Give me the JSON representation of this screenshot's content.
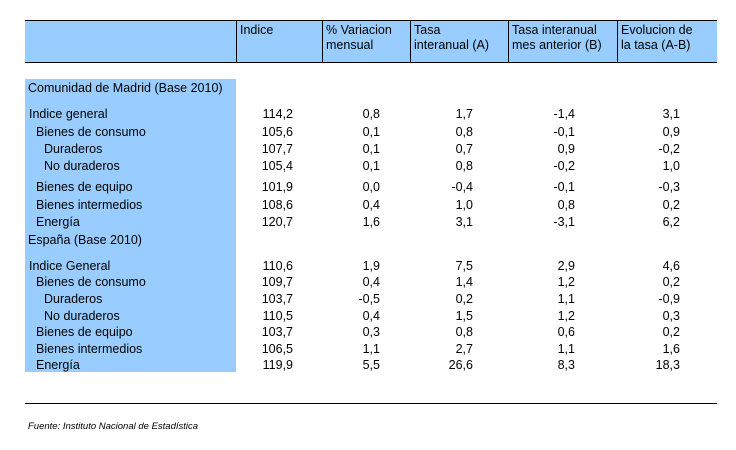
{
  "header": {
    "columns": [
      [
        "Indice"
      ],
      [
        "% Variacion",
        "mensual"
      ],
      [
        "Tasa",
        "interanual (A)"
      ],
      [
        "Tasa interanual",
        "mes anterior (B)"
      ],
      [
        "Evolucion de",
        "la tasa (A-B)"
      ]
    ]
  },
  "sections": [
    {
      "title": "Comunidad de Madrid (Base 2010)",
      "rows": [
        {
          "label": "Indice general",
          "indent": 0,
          "values": [
            "114,2",
            "0,8",
            "1,7",
            "-1,4",
            "3,1"
          ]
        },
        {
          "label": "Bienes de consumo",
          "indent": 1,
          "values": [
            "105,6",
            "0,1",
            "0,8",
            "-0,1",
            "0,9"
          ]
        },
        {
          "label": "Duraderos",
          "indent": 2,
          "values": [
            "107,7",
            "0,1",
            "0,7",
            "0,9",
            "-0,2"
          ]
        },
        {
          "label": "No duraderos",
          "indent": 2,
          "values": [
            "105,4",
            "0,1",
            "0,8",
            "-0,2",
            "1,0"
          ]
        },
        {
          "label": "Bienes de equipo",
          "indent": 1,
          "values": [
            "101,9",
            "0,0",
            "-0,4",
            "-0,1",
            "-0,3"
          ]
        },
        {
          "label": "Bienes intermedios",
          "indent": 1,
          "values": [
            "108,6",
            "0,4",
            "1,0",
            "0,8",
            "0,2"
          ]
        },
        {
          "label": "Energía",
          "indent": 1,
          "values": [
            "120,7",
            "1,6",
            "3,1",
            "-3,1",
            "6,2"
          ]
        }
      ]
    },
    {
      "title": "España (Base 2010)",
      "rows": [
        {
          "label": "Indice General",
          "indent": 0,
          "values": [
            "110,6",
            "1,9",
            "7,5",
            "2,9",
            "4,6"
          ]
        },
        {
          "label": "Bienes de consumo",
          "indent": 1,
          "values": [
            "109,7",
            "0,4",
            "1,4",
            "1,2",
            "0,2"
          ]
        },
        {
          "label": "Duraderos",
          "indent": 2,
          "values": [
            "103,7",
            "-0,5",
            "0,2",
            "1,1",
            "-0,9"
          ]
        },
        {
          "label": "No duraderos",
          "indent": 2,
          "values": [
            "110,5",
            "0,4",
            "1,5",
            "1,2",
            "0,3"
          ]
        },
        {
          "label": "Bienes de equipo",
          "indent": 1,
          "values": [
            "103,7",
            "0,3",
            "0,8",
            "0,6",
            "0,2"
          ]
        },
        {
          "label": "Bienes intermedios",
          "indent": 1,
          "values": [
            "106,5",
            "1,1",
            "2,7",
            "1,1",
            "1,6"
          ]
        },
        {
          "label": "Energía",
          "indent": 1,
          "values": [
            "119,9",
            "5,5",
            "26,6",
            "8,3",
            "18,3"
          ]
        }
      ]
    }
  ],
  "footer": "Fuente: Instituto Nacional de Estadística"
}
